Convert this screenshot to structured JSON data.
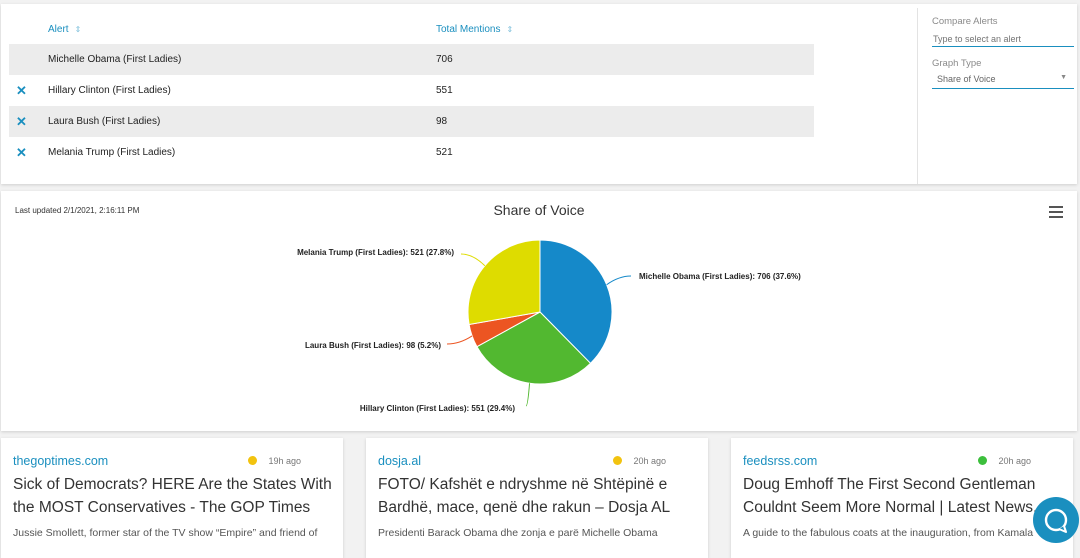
{
  "alerts_table": {
    "col_alert": "Alert",
    "col_mentions": "Total Mentions",
    "sort_icon": "⇕",
    "remove_icon": "✕",
    "rows": [
      {
        "alert": "Michelle Obama (First Ladies)",
        "mentions": "706"
      },
      {
        "alert": "Hillary Clinton (First Ladies)",
        "mentions": "551"
      },
      {
        "alert": "Laura Bush (First Ladies)",
        "mentions": "98"
      },
      {
        "alert": "Melania Trump (First Ladies)",
        "mentions": "521"
      }
    ]
  },
  "sidebar": {
    "compare_label": "Compare Alerts",
    "compare_placeholder": "Type to select an alert",
    "graph_type_label": "Graph Type",
    "graph_type_value": "Share of Voice",
    "caret_icon": "▼"
  },
  "chart_panel": {
    "last_updated": "Last updated 2/1/2021, 2:16:11 PM"
  },
  "chart_data": {
    "type": "pie",
    "title": "Share of Voice",
    "slices": [
      {
        "label": "Michelle Obama (First Ladies): 706 (37.6%)",
        "value": 706,
        "color": "#1589c9"
      },
      {
        "label": "Hillary Clinton (First Ladies): 551 (29.4%)",
        "value": 551,
        "color": "#52b830"
      },
      {
        "label": "Laura Bush (First Ladies): 98 (5.2%)",
        "value": 98,
        "color": "#ec5522"
      },
      {
        "label": "Melania Trump (First Ladies): 521 (27.8%)",
        "value": 521,
        "color": "#dedc00"
      }
    ]
  },
  "news_cards": [
    {
      "source": "thegoptimes.com",
      "time": "19h ago",
      "dot_color": "#f2c30f",
      "title": "Sick of Democrats? HERE Are the States With the MOST Conservatives - The GOP Times",
      "snippet": "Jussie Smollett, former star of the TV show “Empire” and friend of"
    },
    {
      "source": "dosja.al",
      "time": "20h ago",
      "dot_color": "#f2c30f",
      "title": "FOTO/ Kafshët e ndryshme në Shtëpinë e Bardhë, mace, qenë dhe rakun – Dosja AL",
      "snippet": "Presidenti Barack Obama dhe zonja e parë Michelle Obama"
    },
    {
      "source": "feedsrss.com",
      "time": "20h ago",
      "dot_color": "#3cbf3c",
      "title": "Doug Emhoff The First Second Gentleman Couldnt Seem More Normal | Latest News...",
      "snippet": "A guide to the fabulous coats at the inauguration, from Kamala"
    }
  ],
  "chat_icon": "speech-bubble-icon"
}
